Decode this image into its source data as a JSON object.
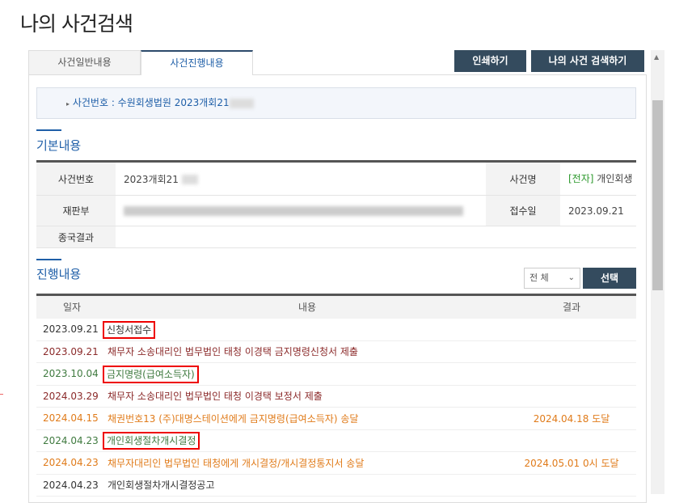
{
  "page_title": "나의 사건검색",
  "tabs": [
    {
      "label": "사건일반내용"
    },
    {
      "label": "사건진행내용"
    }
  ],
  "buttons": {
    "print": "인쇄하기",
    "search": "나의 사건 검색하기"
  },
  "case_banner": "사건번호 : 수원회생법원 2023개회21",
  "basic": {
    "heading": "기본내용",
    "case_no_label": "사건번호",
    "case_no": "2023개회21",
    "case_name_label": "사건명",
    "case_name_tag": "[전자]",
    "case_name": "개인회생",
    "panel_label": "재판부",
    "received_label": "접수일",
    "received": "2023.09.21",
    "result_label": "종국결과"
  },
  "progress": {
    "heading": "진행내용",
    "filter_value": "전 체",
    "filter_button": "선택",
    "columns": [
      "일자",
      "내용",
      "결과"
    ],
    "rows": [
      {
        "date": "2023.09.21",
        "content": "신청서접수",
        "result": "",
        "color": "#333333",
        "highlight": true
      },
      {
        "date": "2023.09.21",
        "content": "채무자 소송대리인 법무법인 태청 이경택 금지명령신청서 제출",
        "result": "",
        "color": "#8b2a2a",
        "highlight": false
      },
      {
        "date": "2023.10.04",
        "content": "금지명령(급여소득자)",
        "result": "",
        "color": "#3f7a3f",
        "highlight": true
      },
      {
        "date": "2024.03.29",
        "content": "채무자 소송대리인 법무법인 태청 이경택 보정서 제출",
        "result": "",
        "color": "#8b2a2a",
        "highlight": false
      },
      {
        "date": "2024.04.15",
        "content": "채권번호13 (주)대명스테이션에게 금지명령(급여소득자) 송달",
        "result": "2024.04.18 도달",
        "color": "#e07b1a",
        "highlight": false
      },
      {
        "date": "2024.04.23",
        "content": "개인회생절차개시결정",
        "result": "",
        "color": "#3f7a3f",
        "highlight": true
      },
      {
        "date": "2024.04.23",
        "content": "채무자대리인 법무법인 태청에게 개시결정/개시결정통지서 송달",
        "result": "2024.05.01 0시 도달",
        "color": "#e07b1a",
        "highlight": false
      },
      {
        "date": "2024.04.23",
        "content": "개인회생절차개시결정공고",
        "result": "",
        "color": "#333333",
        "highlight": false
      }
    ]
  }
}
